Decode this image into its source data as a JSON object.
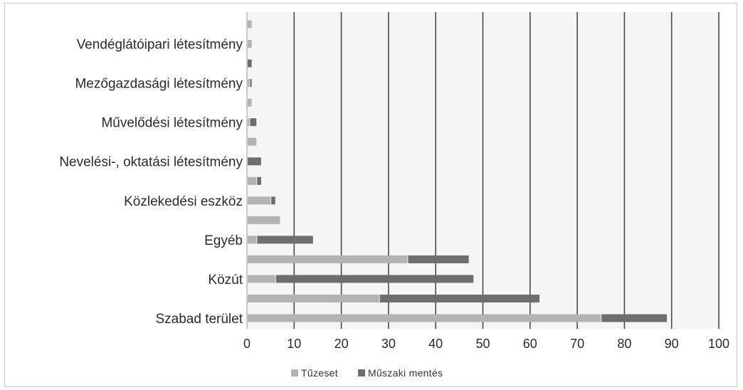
{
  "chart_data": {
    "type": "bar",
    "stacked": true,
    "orientation": "horizontal",
    "categories": [
      "",
      "Vendéglátóipari létesítmény",
      "",
      "Mezőgazdasági létesítmény",
      "",
      "Művelődési létesítmény",
      "",
      "Nevelési-, oktatási létesítmény",
      "",
      "Közlekedési eszköz",
      "",
      "Egyéb",
      "",
      "Közút",
      "",
      "Szabad terület"
    ],
    "series": [
      {
        "name": "Tűzeset",
        "color": "#b3b3b3",
        "values": [
          1,
          1,
          0,
          0.5,
          1,
          0.5,
          2,
          0,
          2,
          5,
          7,
          2,
          34,
          6,
          28,
          75
        ]
      },
      {
        "name": "Műszaki mentés",
        "color": "#6e6e6e",
        "values": [
          0,
          0,
          1,
          0.5,
          0,
          1.5,
          0,
          3,
          1,
          1,
          0,
          12,
          13,
          42,
          34,
          14
        ]
      }
    ],
    "xlim": [
      0,
      100
    ],
    "xticks": [
      "0",
      "10",
      "20",
      "30",
      "40",
      "50",
      "60",
      "70",
      "80",
      "90",
      "100"
    ],
    "grid": true,
    "legend_position": "bottom"
  }
}
